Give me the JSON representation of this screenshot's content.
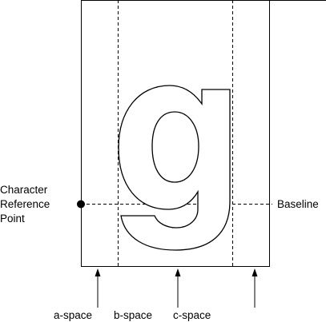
{
  "labels": {
    "reference_point": [
      "Character",
      "Reference",
      "Point"
    ],
    "baseline": "Baseline",
    "a_space": "a-space",
    "b_space": "b-space",
    "c_space": "c-space"
  },
  "colors": {
    "ink": "#000000",
    "background": "#ffffff"
  }
}
